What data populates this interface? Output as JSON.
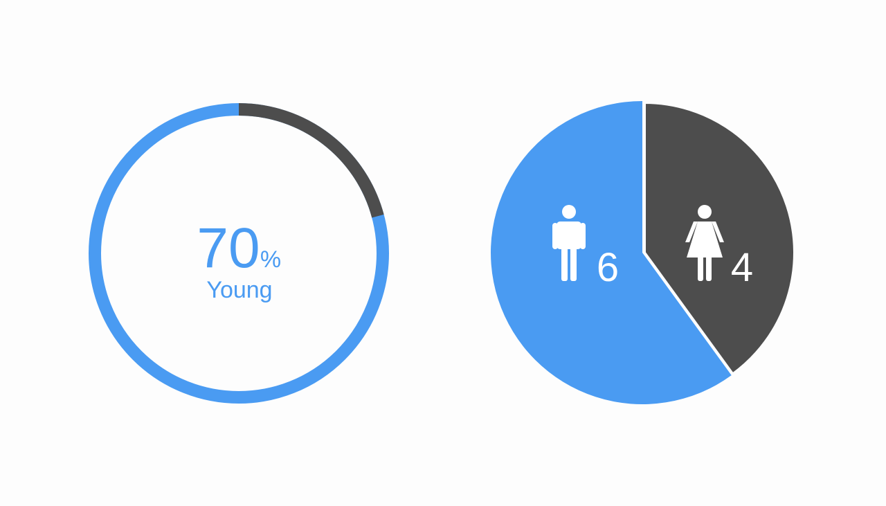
{
  "colors": {
    "primary": "#4a9bf2",
    "secondary": "#4d4d4d",
    "background": "#fdfdfd",
    "icon": "#ffffff"
  },
  "chart_data": [
    {
      "type": "gauge",
      "value": 70,
      "unit": "%",
      "label": "Young",
      "value_text": "70",
      "unit_text": "%"
    },
    {
      "type": "pie",
      "categories": [
        "male",
        "female"
      ],
      "values": [
        6,
        4
      ],
      "icons": [
        "male-person-icon",
        "female-person-icon"
      ],
      "labels": [
        "6",
        "4"
      ]
    }
  ]
}
